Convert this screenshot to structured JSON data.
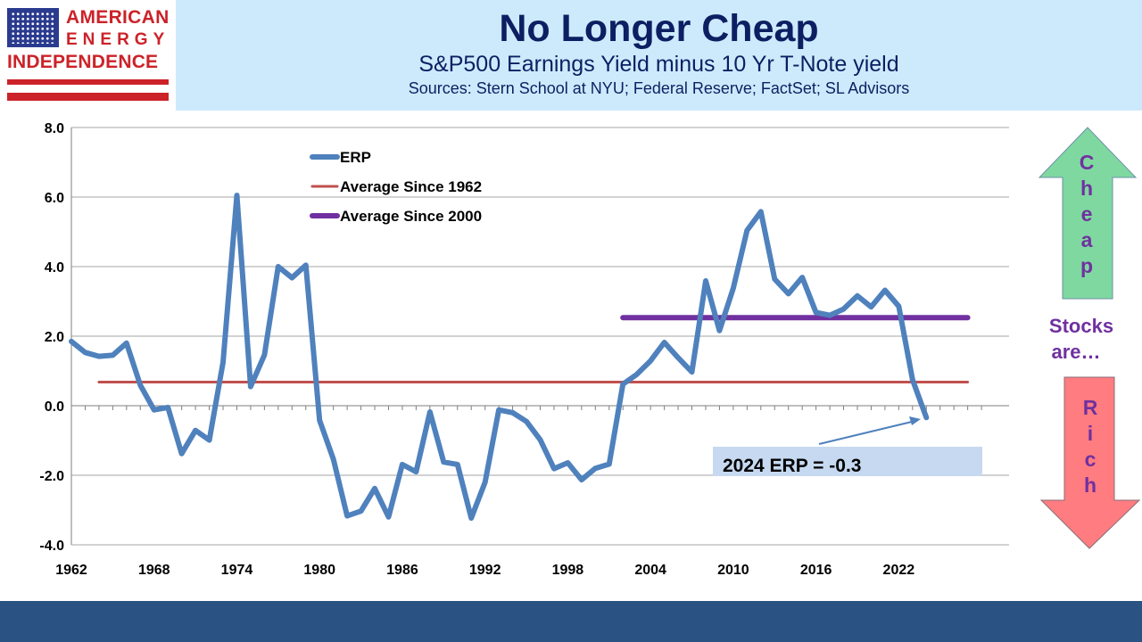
{
  "logo": {
    "line1": "AMERICAN",
    "line2": "ENERGY",
    "line3": "INDEPENDENCE"
  },
  "header": {
    "title": "No Longer Cheap",
    "subtitle": "S&P500 Earnings Yield minus 10 Yr T-Note yield",
    "sources": "Sources: Stern School at NYU; Federal Reserve; FactSet; SL Advisors"
  },
  "colors": {
    "header_bg": "#cdeafc",
    "title": "#0d1f62",
    "erp_line": "#4f81bd",
    "avg1962": "#c0504d",
    "avg2000": "#7030a0",
    "cheap_arrow": "#7fd8a0",
    "rich_arrow": "#ff7c80",
    "arrow_text": "#7030a0",
    "annotation_bg": "#c6d9f1",
    "footer": "#2a5384"
  },
  "side": {
    "cheap_letters": [
      "C",
      "h",
      "e",
      "a",
      "p"
    ],
    "rich_letters": [
      "R",
      "i",
      "c",
      "h"
    ],
    "stocks_line1": "Stocks",
    "stocks_line2": "are…"
  },
  "chart_data": {
    "type": "line",
    "xlabel": "",
    "ylabel": "",
    "ylim": [
      -4,
      8
    ],
    "xlim": [
      1962,
      2030
    ],
    "yticks": [
      "8.0",
      "6.0",
      "4.0",
      "2.0",
      "0.0",
      "-2.0",
      "-4.0"
    ],
    "xticks": [
      "1962",
      "1968",
      "1974",
      "1980",
      "1986",
      "1992",
      "1998",
      "2004",
      "2010",
      "2016",
      "2022"
    ],
    "grid": "horizontal",
    "legend_position": "top-left",
    "series": [
      {
        "name": "ERP",
        "x": [
          1962,
          1963,
          1964,
          1965,
          1966,
          1967,
          1968,
          1969,
          1970,
          1971,
          1972,
          1973,
          1974,
          1975,
          1976,
          1977,
          1978,
          1979,
          1980,
          1981,
          1982,
          1983,
          1984,
          1985,
          1986,
          1987,
          1988,
          1989,
          1990,
          1991,
          1992,
          1993,
          1994,
          1995,
          1996,
          1997,
          1998,
          1999,
          2000,
          2001,
          2002,
          2003,
          2004,
          2005,
          2006,
          2007,
          2008,
          2009,
          2010,
          2011,
          2012,
          2013,
          2014,
          2015,
          2016,
          2017,
          2018,
          2019,
          2020,
          2021,
          2022,
          2023,
          2024
        ],
        "values": [
          1.85,
          1.53,
          1.42,
          1.45,
          1.8,
          0.59,
          -0.12,
          -0.05,
          -1.38,
          -0.71,
          -0.99,
          1.25,
          6.05,
          0.55,
          1.46,
          4.0,
          3.68,
          4.04,
          -0.42,
          -1.54,
          -3.17,
          -3.03,
          -2.38,
          -3.2,
          -1.69,
          -1.9,
          -0.18,
          -1.62,
          -1.69,
          -3.23,
          -2.2,
          -0.12,
          -0.2,
          -0.45,
          -0.98,
          -1.81,
          -1.64,
          -2.13,
          -1.8,
          -1.68,
          0.62,
          0.9,
          1.29,
          1.82,
          1.38,
          0.97,
          3.59,
          2.16,
          3.38,
          5.04,
          5.58,
          3.64,
          3.22,
          3.69,
          2.68,
          2.6,
          2.78,
          3.16,
          2.84,
          3.32,
          2.86,
          0.75,
          -0.34
        ]
      },
      {
        "name": "Average Since 1962",
        "x": [
          1964,
          2027
        ],
        "values": [
          0.68,
          0.68
        ]
      },
      {
        "name": "Average Since 2000",
        "x": [
          2002,
          2027
        ],
        "values": [
          2.53,
          2.53
        ]
      }
    ],
    "annotations": [
      {
        "text": "2024 ERP = -0.3",
        "x": 2024,
        "y": -0.34
      }
    ]
  }
}
